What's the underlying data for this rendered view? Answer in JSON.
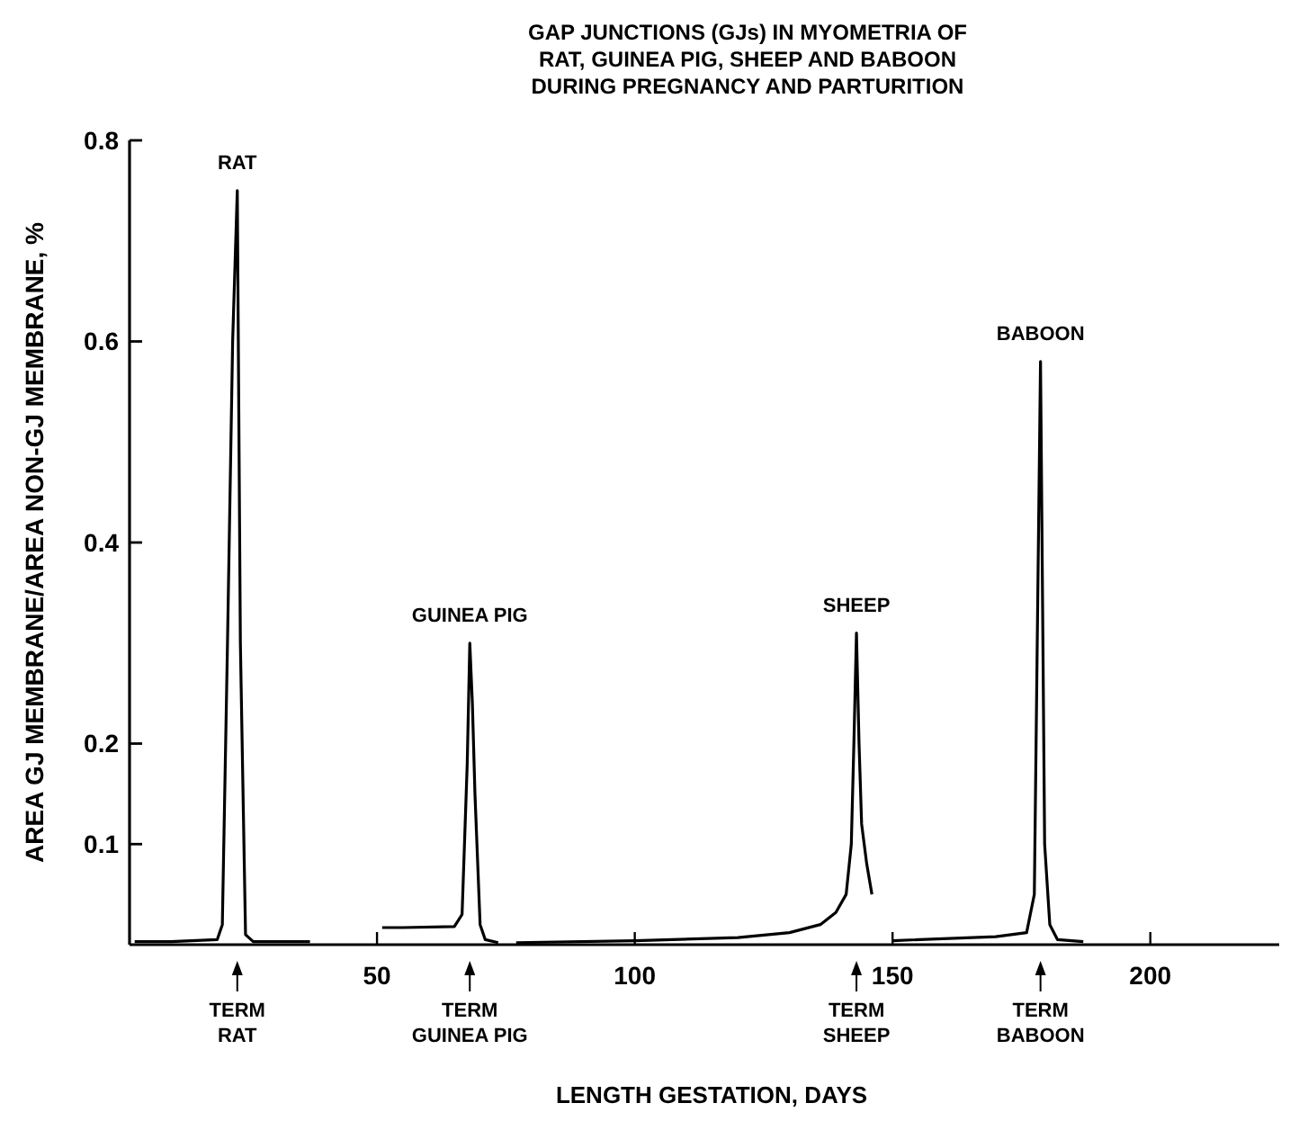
{
  "chart_data": {
    "type": "line",
    "title": "GAP JUNCTIONS (GJs) IN MYOMETRIA OF\nRAT, GUINEA PIG, SHEEP AND BABOON\nDURING PREGNANCY AND PARTURITION",
    "xlabel": "LENGTH GESTATION, DAYS",
    "ylabel": "AREA GJ MEMBRANE/AREA NON-GJ MEMBRANE, %",
    "xlim": [
      2,
      225
    ],
    "xticks": [
      50,
      100,
      150,
      200
    ],
    "ylim": [
      0,
      0.8
    ],
    "yticks": [
      0.1,
      0.2,
      0.4,
      0.6,
      0.8
    ],
    "grid": false,
    "marker": "none",
    "line_style": "solid",
    "series": [
      {
        "name": "RAT",
        "color": "#000000",
        "x": [
          3,
          10,
          19,
          20,
          21,
          22,
          22.9,
          23.5,
          24.5,
          26,
          37
        ],
        "values": [
          0.003,
          0.003,
          0.005,
          0.02,
          0.3,
          0.6,
          0.75,
          0.3,
          0.01,
          0.003,
          0.003
        ]
      },
      {
        "name": "GUINEA PIG",
        "color": "#000000",
        "x": [
          51,
          55,
          65,
          66.5,
          67.5,
          68,
          68.5,
          69,
          70,
          71,
          73.5
        ],
        "values": [
          0.017,
          0.017,
          0.018,
          0.03,
          0.18,
          0.3,
          0.24,
          0.15,
          0.02,
          0.005,
          0.002
        ]
      },
      {
        "name": "SHEEP",
        "color": "#000000",
        "x": [
          77,
          100,
          120,
          130,
          136,
          139,
          141,
          142,
          142.5,
          143,
          143.5,
          144,
          145,
          146
        ],
        "values": [
          0.002,
          0.004,
          0.007,
          0.012,
          0.02,
          0.032,
          0.05,
          0.1,
          0.2,
          0.31,
          0.2,
          0.12,
          0.08,
          0.05
        ]
      },
      {
        "name": "BABOON",
        "color": "#000000",
        "x": [
          150,
          170,
          176,
          177.5,
          178.7,
          179.5,
          180.5,
          182,
          187
        ],
        "values": [
          0.004,
          0.008,
          0.012,
          0.05,
          0.58,
          0.1,
          0.02,
          0.005,
          0.003
        ]
      }
    ],
    "annotations": [
      "TERM\nRAT",
      "TERM\nGUINEA PIG",
      "TERM\nSHEEP",
      "TERM\nBABOON"
    ]
  }
}
